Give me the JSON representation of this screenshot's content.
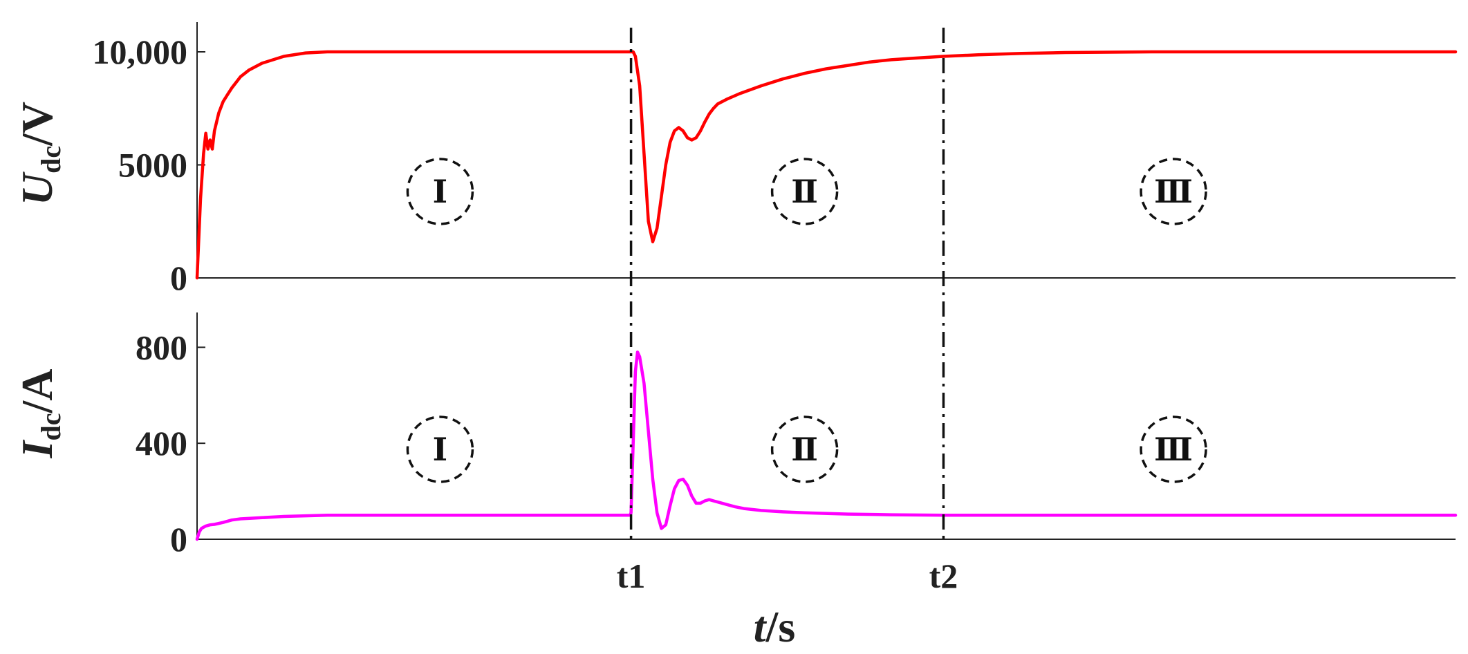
{
  "chart_data": {
    "type": "line",
    "xlabel_var": "t",
    "xlabel_unit": "/s",
    "x_ticks": [
      "t1",
      "t2"
    ],
    "x_tick_values": [
      1,
      1.72
    ],
    "xlim": [
      0,
      2.9
    ],
    "panels": [
      {
        "ylabel_var": "U",
        "ylabel_sub": "dc",
        "ylabel_unit": "/V",
        "ylim": [
          0,
          10000
        ],
        "y_ticks": [
          "0",
          "5000",
          "10,000"
        ],
        "y_tick_values": [
          0,
          5000,
          10000
        ],
        "region_labels": [
          "Ⅰ",
          "Ⅱ",
          "Ⅲ"
        ],
        "grid": false,
        "series": [
          {
            "color": "#ff0000",
            "x": [
              0,
              0.008,
              0.015,
              0.02,
              0.025,
              0.03,
              0.035,
              0.04,
              0.05,
              0.06,
              0.07,
              0.08,
              0.1,
              0.12,
              0.15,
              0.2,
              0.25,
              0.3,
              0.4,
              0.5,
              0.7,
              0.9,
              1.0,
              1.005,
              1.01,
              1.02,
              1.03,
              1.04,
              1.05,
              1.06,
              1.07,
              1.08,
              1.09,
              1.1,
              1.11,
              1.12,
              1.13,
              1.14,
              1.15,
              1.16,
              1.17,
              1.18,
              1.19,
              1.2,
              1.22,
              1.25,
              1.3,
              1.35,
              1.4,
              1.45,
              1.5,
              1.55,
              1.6,
              1.65,
              1.72,
              1.8,
              1.9,
              2.0,
              2.2,
              2.4,
              2.6,
              2.9
            ],
            "y": [
              0,
              3500,
              5500,
              6400,
              5700,
              6100,
              5700,
              6500,
              7300,
              7800,
              8100,
              8400,
              8900,
              9200,
              9500,
              9800,
              9950,
              10000,
              10000,
              10000,
              10000,
              10000,
              10000,
              10000,
              9800,
              8500,
              5500,
              2500,
              1600,
              2200,
              3600,
              5000,
              6000,
              6500,
              6650,
              6500,
              6200,
              6100,
              6200,
              6500,
              6900,
              7250,
              7500,
              7700,
              7900,
              8150,
              8500,
              8800,
              9050,
              9250,
              9400,
              9550,
              9650,
              9720,
              9800,
              9870,
              9930,
              9970,
              10000,
              10000,
              10000,
              10000
            ]
          }
        ]
      },
      {
        "ylabel_var": "I",
        "ylabel_sub": "dc",
        "ylabel_unit": "/A",
        "ylim": [
          0,
          850
        ],
        "y_ticks": [
          "0",
          "400",
          "800"
        ],
        "y_tick_values": [
          0,
          400,
          800
        ],
        "region_labels": [
          "Ⅰ",
          "Ⅱ",
          "Ⅲ"
        ],
        "grid": false,
        "series": [
          {
            "color": "#ff00ff",
            "x": [
              0,
              0.005,
              0.01,
              0.02,
              0.03,
              0.04,
              0.06,
              0.08,
              0.1,
              0.15,
              0.2,
              0.3,
              0.5,
              0.7,
              0.9,
              0.998,
              1.0,
              1.005,
              1.01,
              1.015,
              1.02,
              1.03,
              1.04,
              1.05,
              1.06,
              1.07,
              1.08,
              1.09,
              1.1,
              1.11,
              1.12,
              1.13,
              1.14,
              1.15,
              1.16,
              1.17,
              1.18,
              1.19,
              1.2,
              1.21,
              1.22,
              1.24,
              1.26,
              1.3,
              1.35,
              1.4,
              1.5,
              1.6,
              1.72,
              1.8,
              2.0,
              2.2,
              2.5,
              2.9
            ],
            "y": [
              0,
              30,
              45,
              55,
              60,
              62,
              70,
              80,
              85,
              90,
              95,
              100,
              100,
              100,
              100,
              100,
              110,
              400,
              700,
              780,
              760,
              650,
              450,
              250,
              110,
              45,
              60,
              140,
              210,
              245,
              250,
              225,
              180,
              150,
              150,
              160,
              165,
              160,
              155,
              150,
              145,
              135,
              128,
              120,
              114,
              110,
              105,
              102,
              100,
              100,
              100,
              100,
              100,
              100
            ]
          }
        ]
      }
    ]
  }
}
